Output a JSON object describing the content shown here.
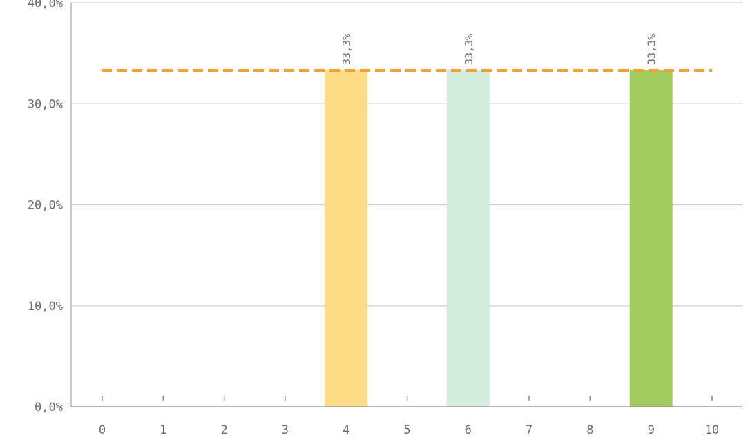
{
  "chart_data": {
    "type": "bar",
    "categories": [
      "0",
      "1",
      "2",
      "3",
      "4",
      "5",
      "6",
      "7",
      "8",
      "9",
      "10"
    ],
    "values": [
      0,
      0,
      0,
      0,
      33.3,
      0,
      33.3,
      0,
      0,
      33.3,
      0
    ],
    "data_labels": [
      "",
      "",
      "",
      "",
      "33,3%",
      "",
      "33,3%",
      "",
      "",
      "33,3%",
      ""
    ],
    "bar_colors": [
      "#fddc85",
      "#fddc85",
      "#fddc85",
      "#fddc85",
      "#fddc85",
      "#d3eedc",
      "#d3eedc",
      "#d3eedc",
      "#a3cc5e",
      "#a3cc5e",
      "#a3cc5e"
    ],
    "ylim": [
      0,
      40
    ],
    "y_ticks": [
      0,
      10,
      20,
      30,
      40
    ],
    "y_tick_labels": [
      "0,0%",
      "10,0%",
      "20,0%",
      "30,0%",
      "40,0%"
    ],
    "reference_line": {
      "value": 33.3,
      "color": "#f5a030",
      "style": "dashed"
    },
    "grid": true,
    "title": "",
    "xlabel": "",
    "ylabel": ""
  }
}
